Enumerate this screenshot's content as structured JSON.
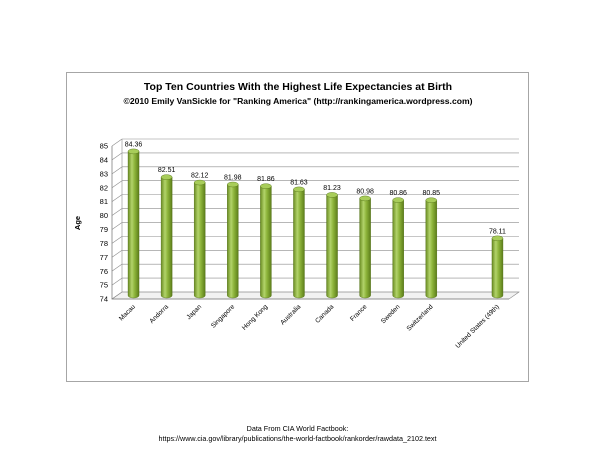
{
  "chart_data": {
    "type": "bar",
    "title": "Top Ten Countries With the Highest Life Expectancies at Birth",
    "subtitle": "©2010 Emily VanSickle for \"Ranking America\" (http://rankingamerica.wordpress.com)",
    "xlabel": "",
    "ylabel": "Age",
    "ylim": [
      74,
      85
    ],
    "yticks": [
      "74",
      "75",
      "76",
      "77",
      "78",
      "79",
      "80",
      "81",
      "82",
      "83",
      "84",
      "85"
    ],
    "grid": true,
    "legend": "none",
    "bar_color": "#8db43a",
    "categories": [
      "Macau",
      "Andorra",
      "Japan",
      "Singapore",
      "Hong Kong",
      "Australia",
      "Canada",
      "France",
      "Sweden",
      "Switzerland",
      "",
      "United States (49th)"
    ],
    "values": [
      84.36,
      82.51,
      82.12,
      81.98,
      81.86,
      81.63,
      81.23,
      80.98,
      80.86,
      80.85,
      null,
      78.11
    ],
    "value_labels": [
      "84.36",
      "82.51",
      "82.12",
      "81.98",
      "81.86",
      "81.63",
      "81.23",
      "80.98",
      "80.86",
      "80.85",
      "",
      "78.11"
    ]
  },
  "footer": {
    "line1": "Data From CIA World Factbook:",
    "line2": "https://www.cia.gov/library/publications/the-world-factbook/rankorder/rawdata_2102.text"
  }
}
